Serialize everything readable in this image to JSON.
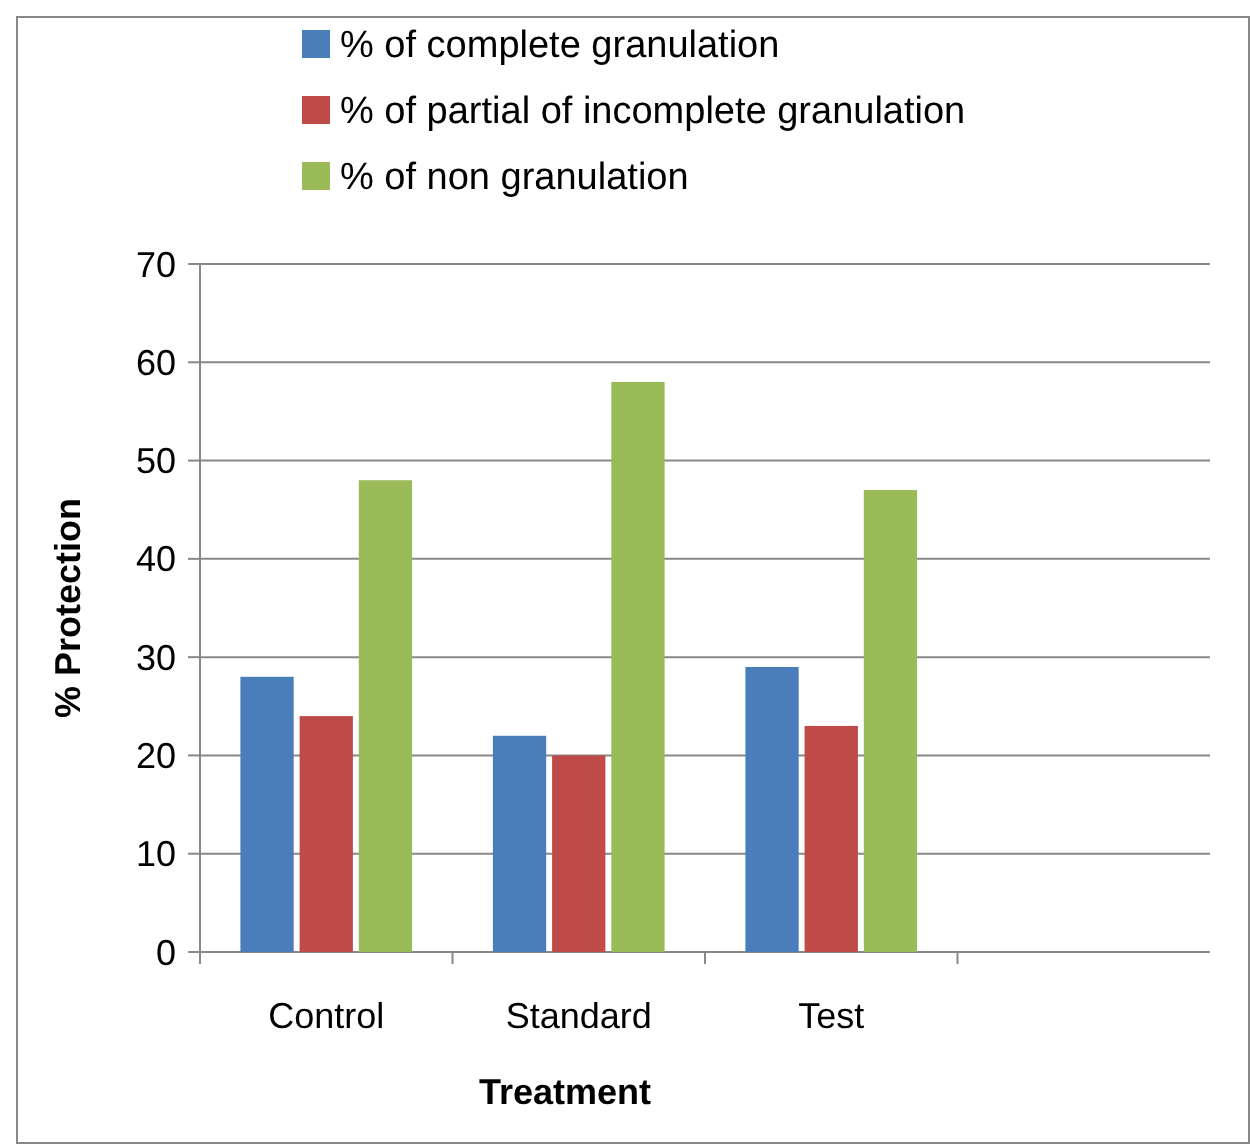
{
  "chart_data": {
    "type": "bar",
    "xlabel": "Treatment",
    "ylabel": "% Protection",
    "categories": [
      "Control",
      "Standard",
      "Test",
      null
    ],
    "series": [
      {
        "name": "% of complete granulation",
        "color": "#4a7ebb",
        "values": [
          28,
          22,
          29,
          null
        ]
      },
      {
        "name": "% of partial of incomplete granulation",
        "color": "#be4b48",
        "values": [
          24,
          20,
          23,
          null
        ]
      },
      {
        "name": "% of non granulation",
        "color": "#9bbb59",
        "values": [
          48,
          58,
          47,
          null
        ]
      }
    ],
    "ylim": [
      0,
      70
    ],
    "yticks": [
      0,
      10,
      20,
      30,
      40,
      50,
      60,
      70
    ],
    "grid": "y",
    "legend": "top"
  }
}
